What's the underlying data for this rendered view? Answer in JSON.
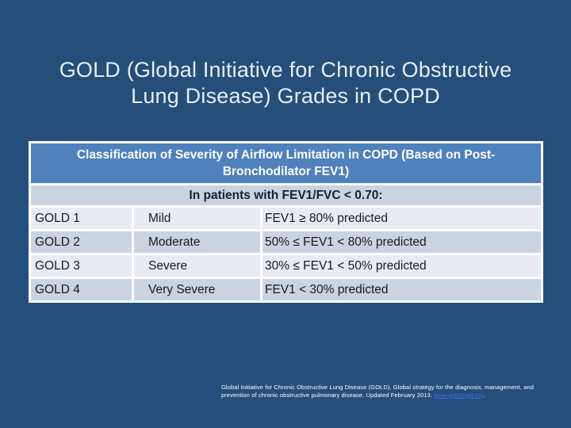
{
  "title": {
    "line1": "GOLD (Global Initiative for Chronic Obstructive",
    "line2": "Lung Disease) Grades in COPD"
  },
  "table": {
    "header": "Classification of Severity of Airflow Limitation in COPD (Based on Post-Bronchodilator FEV1)",
    "subheader": "In patients with FEV1/FVC < 0.70:",
    "rows": [
      {
        "grade": "GOLD 1",
        "severity": "Mild",
        "criteria": "FEV1 ≥ 80% predicted"
      },
      {
        "grade": "GOLD 2",
        "severity": "Moderate",
        "criteria": "50% ≤ FEV1 < 80% predicted"
      },
      {
        "grade": "GOLD 3",
        "severity": "Severe",
        "criteria": "30% ≤ FEV1 < 50% predicted"
      },
      {
        "grade": "GOLD 4",
        "severity": "Very Severe",
        "criteria": "FEV1 < 30% predicted"
      }
    ]
  },
  "footer": {
    "line1": "Global Initiative for Chronic Obstructive Lung Disease (GOLD). Global strategy for the diagnosis, management, and",
    "line2_before_link": "prevention of chronic obstructive pulmonary disease. Updated February 2013. ",
    "link": "www.goldcopd.org",
    "line2_after_link": "."
  },
  "colors": {
    "background": "#254E7B",
    "table_header_blue": "#4F81BD",
    "row_light": "#E9EBF2",
    "row_dark": "#CBD2E0",
    "title_text": "#E7EEF6",
    "body_text": "#1A1A1A",
    "link": "#3C6FE0",
    "table_border": "#FFFFFF"
  }
}
